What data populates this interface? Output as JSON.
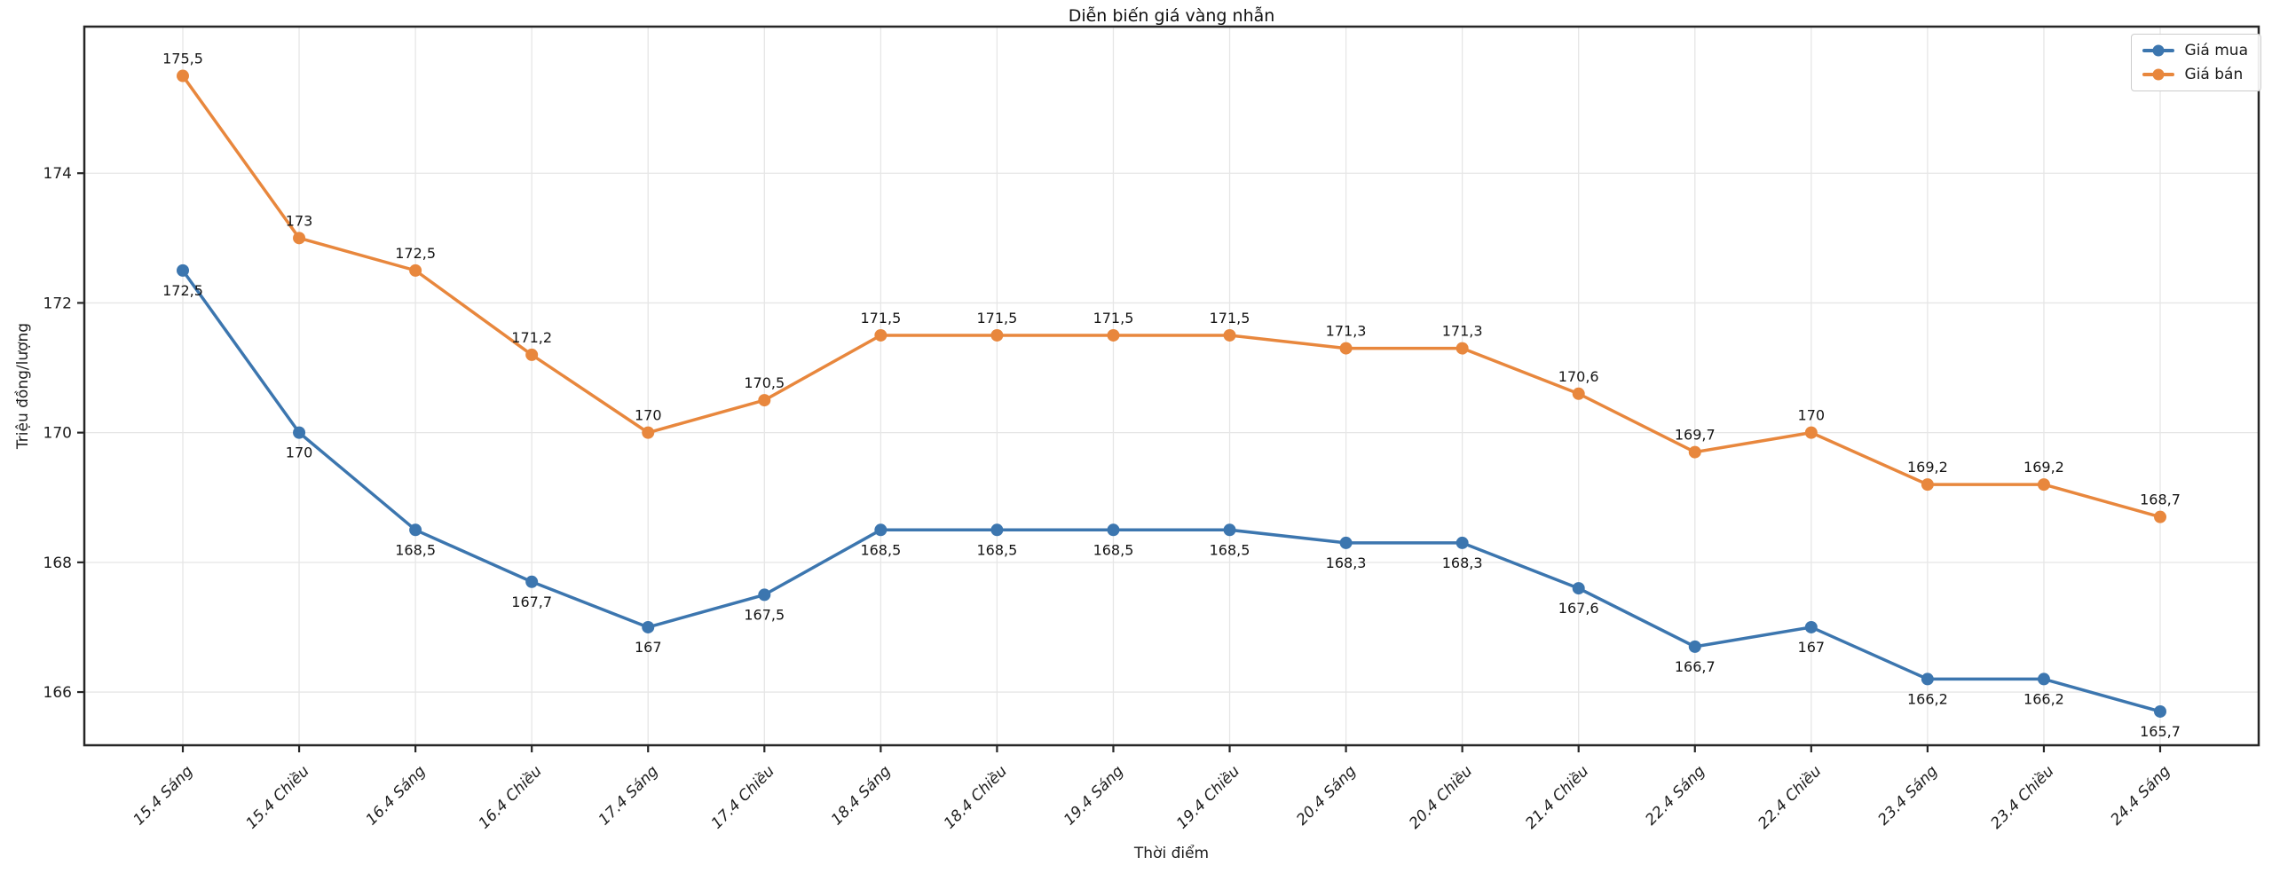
{
  "chart_data": {
    "type": "line",
    "title": "Diễn biến giá vàng nhẫn",
    "xlabel": "Thời điểm",
    "ylabel": "Triệu đồng/lượng",
    "categories": [
      "15.4 Sáng",
      "15.4 Chiều",
      "16.4 Sáng",
      "16.4 Chiều",
      "17.4 Sáng",
      "17.4 Chiều",
      "18.4 Sáng",
      "18.4 Chiều",
      "19.4 Sáng",
      "19.4 Chiều",
      "20.4 Sáng",
      "20.4 Chiều",
      "21.4 Chiều",
      "22.4 Sáng",
      "22.4 Chiều",
      "23.4 Sáng",
      "23.4 Chiều",
      "24.4 Sáng"
    ],
    "series": [
      {
        "name": "Giá mua",
        "color": "#3c76af",
        "values": [
          172.5,
          170,
          168.5,
          167.7,
          167,
          167.5,
          168.5,
          168.5,
          168.5,
          168.5,
          168.3,
          168.3,
          167.6,
          166.7,
          167,
          166.2,
          166.2,
          165.7
        ],
        "point_labels": [
          "172,5",
          "170",
          "168,5",
          "167,7",
          "167",
          "167,5",
          "168,5",
          "168,5",
          "168,5",
          "168,5",
          "168,3",
          "168,3",
          "167,6",
          "166,7",
          "167",
          "166,2",
          "166,2",
          "165,7"
        ],
        "label_position": "below"
      },
      {
        "name": "Giá bán",
        "color": "#e8873d",
        "values": [
          175.5,
          173,
          172.5,
          171.2,
          170,
          170.5,
          171.5,
          171.5,
          171.5,
          171.5,
          171.3,
          171.3,
          170.6,
          169.7,
          170,
          169.2,
          169.2,
          168.7
        ],
        "point_labels": [
          "175,5",
          "173",
          "172,5",
          "171,2",
          "170",
          "170,5",
          "171,5",
          "171,5",
          "171,5",
          "171,5",
          "171,3",
          "171,3",
          "170,6",
          "169,7",
          "170",
          "169,2",
          "169,2",
          "168,7"
        ],
        "label_position": "above"
      }
    ],
    "yticks": [
      166,
      168,
      170,
      172,
      174
    ],
    "ytick_labels": [
      "166",
      "168",
      "170",
      "172",
      "174"
    ],
    "ylim": [
      165.18,
      176.26
    ],
    "grid": true,
    "legend_position": "top-right",
    "colors": {
      "grid": "#e6e6e6",
      "spine": "#262626",
      "tick_text": "#1c1c1c",
      "label_text": "#141414",
      "background": "#ffffff"
    }
  }
}
